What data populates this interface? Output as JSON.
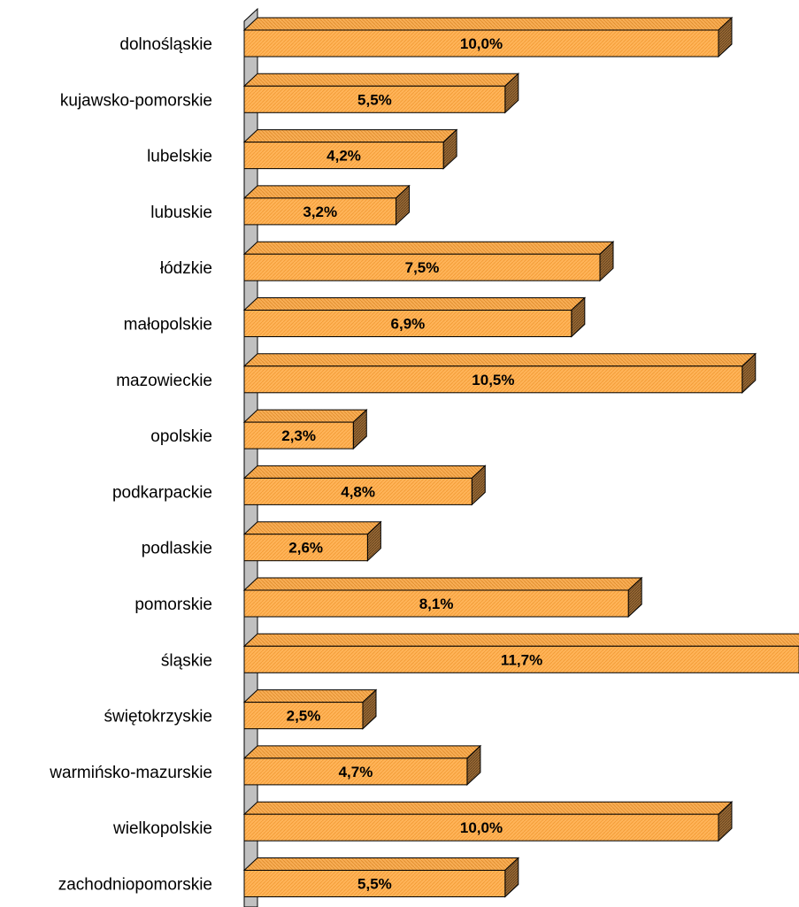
{
  "chart_data": {
    "type": "bar",
    "orientation": "horizontal",
    "style": "3d",
    "categories": [
      "dolnośląskie",
      "kujawsko-pomorskie",
      "lubelskie",
      "lubuskie",
      "łódzkie",
      "małopolskie",
      "mazowieckie",
      "opolskie",
      "podkarpackie",
      "podlaskie",
      "pomorskie",
      "śląskie",
      "świętokrzyskie",
      "warmińsko-mazurskie",
      "wielkopolskie",
      "zachodniopomorskie"
    ],
    "values": [
      10.0,
      5.5,
      4.2,
      3.2,
      7.5,
      6.9,
      10.5,
      2.3,
      4.8,
      2.6,
      8.1,
      11.7,
      2.5,
      4.7,
      10.0,
      5.5
    ],
    "value_labels": [
      "10,0%",
      "5,5%",
      "4,2%",
      "3,2%",
      "7,5%",
      "6,9%",
      "10,5%",
      "2,3%",
      "4,8%",
      "2,6%",
      "8,1%",
      "11,7%",
      "2,5%",
      "4,7%",
      "10,0%",
      "5,5%"
    ],
    "unit": "%",
    "title": "",
    "xlabel": "",
    "ylabel": "",
    "xlim": [
      0,
      11.7
    ],
    "grid": false,
    "legend": "none",
    "colors": {
      "bar_front": "#ffb459",
      "bar_top": "#f5a54a",
      "bar_side": "#9a6a35",
      "bar_outline": "#000000",
      "axis_wall": "#c0c0c0"
    }
  }
}
